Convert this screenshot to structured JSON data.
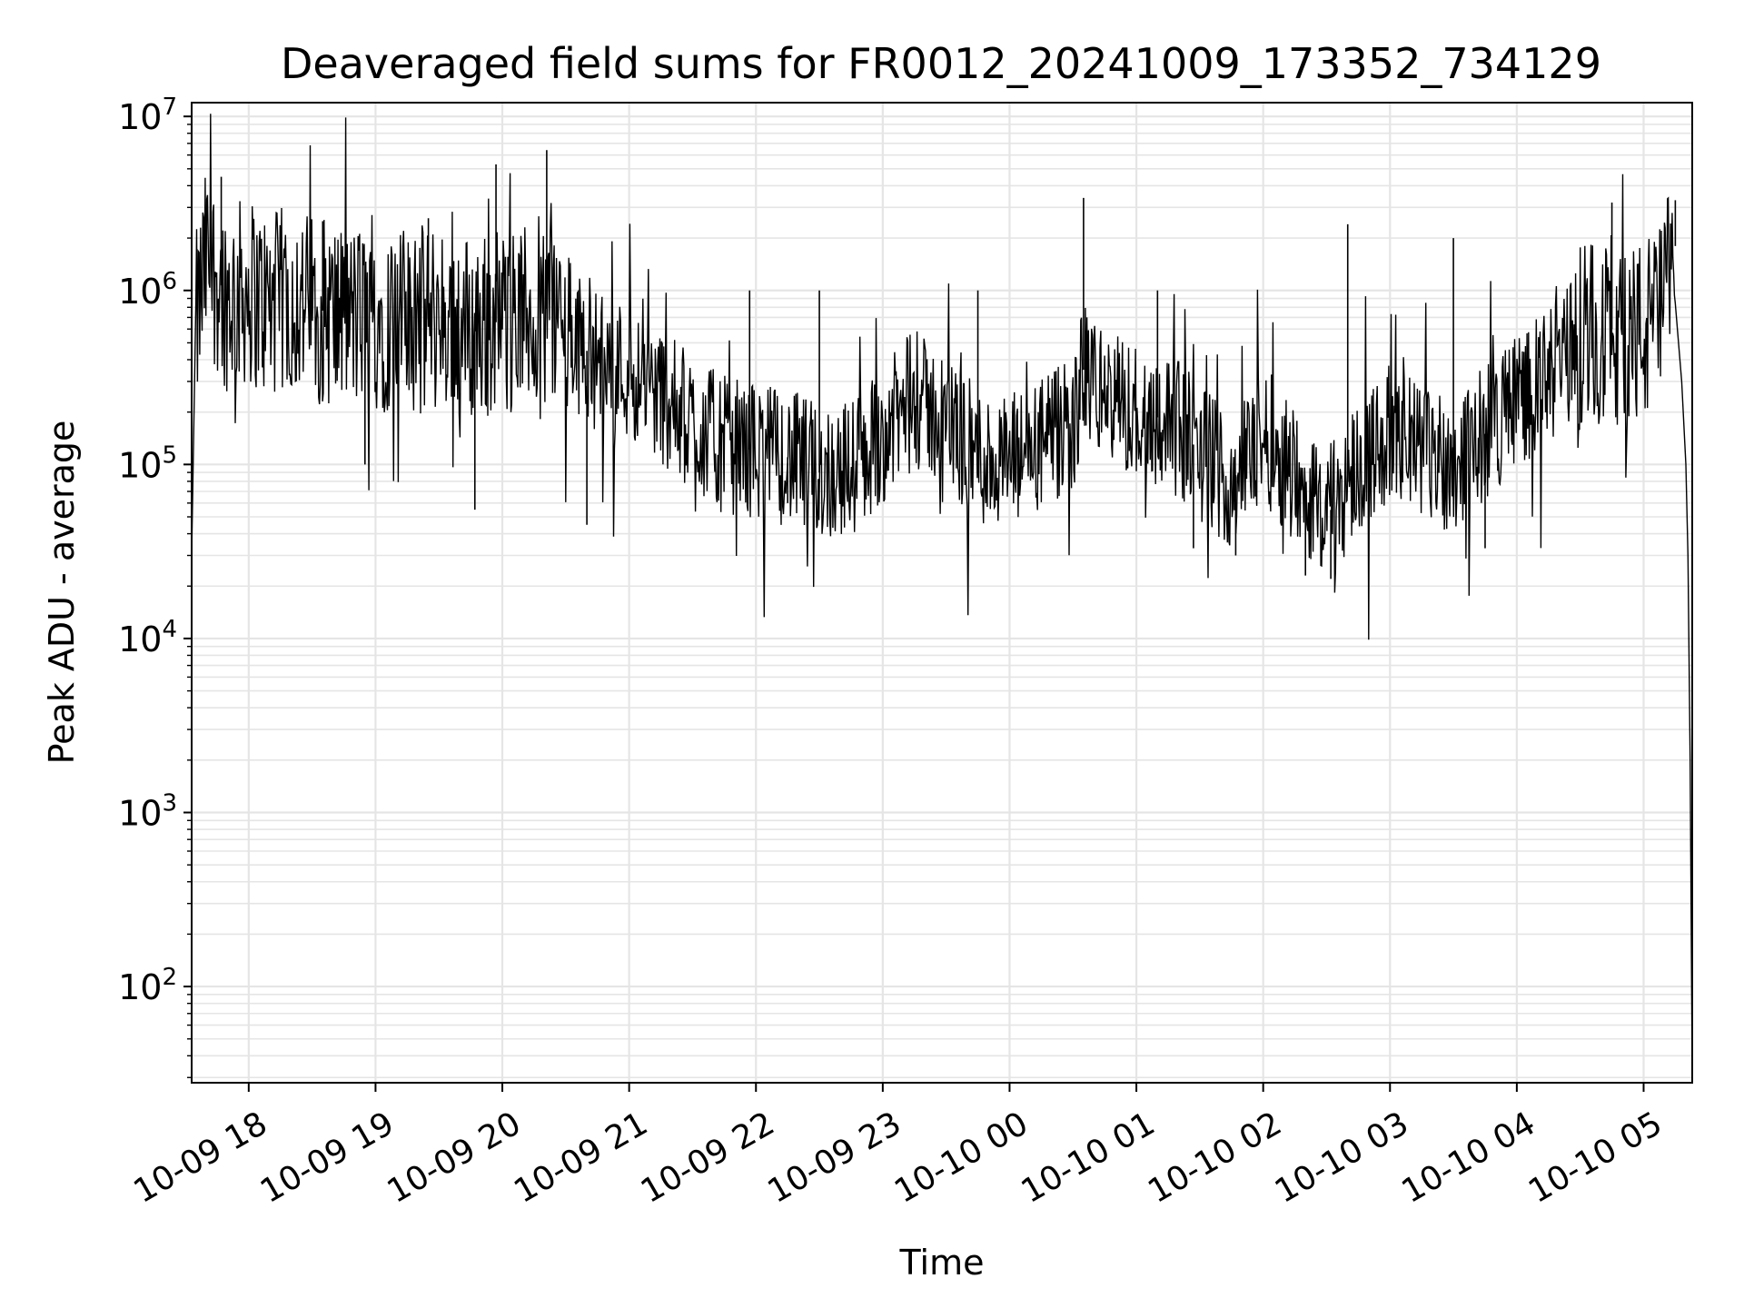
{
  "chart_data": {
    "type": "line",
    "title": "Deaveraged field sums for FR0012_20241009_173352_734129",
    "xlabel": "Time",
    "ylabel": "Peak ADU - average",
    "x_scale": "time",
    "y_scale": "log",
    "xlim": [
      "2024-10-09 17:33",
      "2024-10-10 05:23"
    ],
    "ylim": [
      28,
      12000000
    ],
    "x_ticks": [
      {
        "value": "2024-10-09 18:00",
        "label": "10-09 18"
      },
      {
        "value": "2024-10-09 19:00",
        "label": "10-09 19"
      },
      {
        "value": "2024-10-09 20:00",
        "label": "10-09 20"
      },
      {
        "value": "2024-10-09 21:00",
        "label": "10-09 21"
      },
      {
        "value": "2024-10-09 22:00",
        "label": "10-09 22"
      },
      {
        "value": "2024-10-09 23:00",
        "label": "10-09 23"
      },
      {
        "value": "2024-10-10 00:00",
        "label": "10-10 00"
      },
      {
        "value": "2024-10-10 01:00",
        "label": "10-10 01"
      },
      {
        "value": "2024-10-10 02:00",
        "label": "10-10 02"
      },
      {
        "value": "2024-10-10 03:00",
        "label": "10-10 03"
      },
      {
        "value": "2024-10-10 04:00",
        "label": "10-10 04"
      },
      {
        "value": "2024-10-10 05:00",
        "label": "10-10 05"
      }
    ],
    "y_ticks": [
      {
        "value": 100,
        "base": "10",
        "exp": "2"
      },
      {
        "value": 1000,
        "base": "10",
        "exp": "3"
      },
      {
        "value": 10000,
        "base": "10",
        "exp": "4"
      },
      {
        "value": 100000,
        "base": "10",
        "exp": "5"
      },
      {
        "value": 1000000,
        "base": "10",
        "exp": "6"
      },
      {
        "value": 10000000,
        "base": "10",
        "exp": "7"
      }
    ],
    "grid": true,
    "line_color": "#000000",
    "grid_color": "#e5e5e5",
    "series": [
      {
        "x": [
          "2024-10-09 17:33",
          "2024-10-09 17:35",
          "2024-10-09 17:40",
          "2024-10-09 17:45",
          "2024-10-09 17:50",
          "2024-10-09 18:00",
          "2024-10-09 18:10",
          "2024-10-09 18:20",
          "2024-10-09 18:30",
          "2024-10-09 18:45",
          "2024-10-09 19:00",
          "2024-10-09 19:15",
          "2024-10-09 19:30",
          "2024-10-09 19:45",
          "2024-10-09 19:55",
          "2024-10-09 20:10",
          "2024-10-09 20:23",
          "2024-10-09 20:30",
          "2024-10-09 20:40",
          "2024-10-09 20:50",
          "2024-10-09 21:00",
          "2024-10-09 21:15",
          "2024-10-09 21:30",
          "2024-10-09 21:45",
          "2024-10-09 22:00",
          "2024-10-09 22:15",
          "2024-10-09 22:30",
          "2024-10-09 22:45",
          "2024-10-09 23:00",
          "2024-10-09 23:15",
          "2024-10-09 23:30",
          "2024-10-09 23:45",
          "2024-10-10 00:00",
          "2024-10-10 00:15",
          "2024-10-10 00:30",
          "2024-10-10 00:35",
          "2024-10-10 00:45",
          "2024-10-10 01:00",
          "2024-10-10 01:15",
          "2024-10-10 01:30",
          "2024-10-10 01:45",
          "2024-10-10 02:00",
          "2024-10-10 02:15",
          "2024-10-10 02:30",
          "2024-10-10 02:45",
          "2024-10-10 03:00",
          "2024-10-10 03:15",
          "2024-10-10 03:30",
          "2024-10-10 03:45",
          "2024-10-10 04:00",
          "2024-10-10 04:15",
          "2024-10-10 04:30",
          "2024-10-10 04:45",
          "2024-10-10 05:00",
          "2024-10-10 05:10",
          "2024-10-10 05:15",
          "2024-10-10 05:18",
          "2024-10-10 05:20",
          "2024-10-10 05:21",
          "2024-10-10 05:22",
          "2024-10-10 05:23"
        ],
        "y": [
          30000,
          600000,
          1500000,
          1200000,
          900000,
          1000000,
          800000,
          900000,
          800000,
          700000,
          700000,
          650000,
          700000,
          600000,
          650000,
          700000,
          800000,
          550000,
          450000,
          380000,
          350000,
          250000,
          170000,
          130000,
          120000,
          110000,
          90000,
          95000,
          150000,
          230000,
          180000,
          110000,
          100000,
          130000,
          160000,
          350000,
          250000,
          200000,
          180000,
          120000,
          80000,
          150000,
          90000,
          50000,
          100000,
          150000,
          120000,
          100000,
          150000,
          250000,
          300000,
          550000,
          600000,
          550000,
          800000,
          1800000,
          300000,
          100000,
          30000,
          2000,
          30
        ]
      }
    ],
    "spikes": [
      {
        "x": "2024-10-09 17:47",
        "y": 4500000
      },
      {
        "x": "2024-10-09 18:35",
        "y": 2500000
      },
      {
        "x": "2024-10-09 19:25",
        "y": 2600000
      },
      {
        "x": "2024-10-09 19:57",
        "y": 5300000
      },
      {
        "x": "2024-10-09 20:21",
        "y": 6400000
      },
      {
        "x": "2024-10-09 21:57",
        "y": 1000000
      },
      {
        "x": "2024-10-09 22:30",
        "y": 1000000
      },
      {
        "x": "2024-10-09 23:45",
        "y": 1000000
      },
      {
        "x": "2024-10-10 00:35",
        "y": 3400000
      },
      {
        "x": "2024-10-10 01:10",
        "y": 1000000
      },
      {
        "x": "2024-10-10 02:40",
        "y": 2400000
      },
      {
        "x": "2024-10-10 03:30",
        "y": 2000000
      },
      {
        "x": "2024-10-10 04:45",
        "y": 3200000
      },
      {
        "x": "2024-10-10 05:15",
        "y": 3300000
      }
    ],
    "dips": [
      {
        "x": "2024-10-09 18:55",
        "y": 100000
      },
      {
        "x": "2024-10-09 19:47",
        "y": 55000
      },
      {
        "x": "2024-10-09 20:40",
        "y": 45000
      },
      {
        "x": "2024-10-09 22:15",
        "y": 60000
      },
      {
        "x": "2024-10-10 01:27",
        "y": 33000
      },
      {
        "x": "2024-10-10 01:47",
        "y": 30000
      },
      {
        "x": "2024-10-10 02:20",
        "y": 23000
      },
      {
        "x": "2024-10-10 02:32",
        "y": 22000
      },
      {
        "x": "2024-10-10 03:45",
        "y": 33000
      }
    ]
  }
}
